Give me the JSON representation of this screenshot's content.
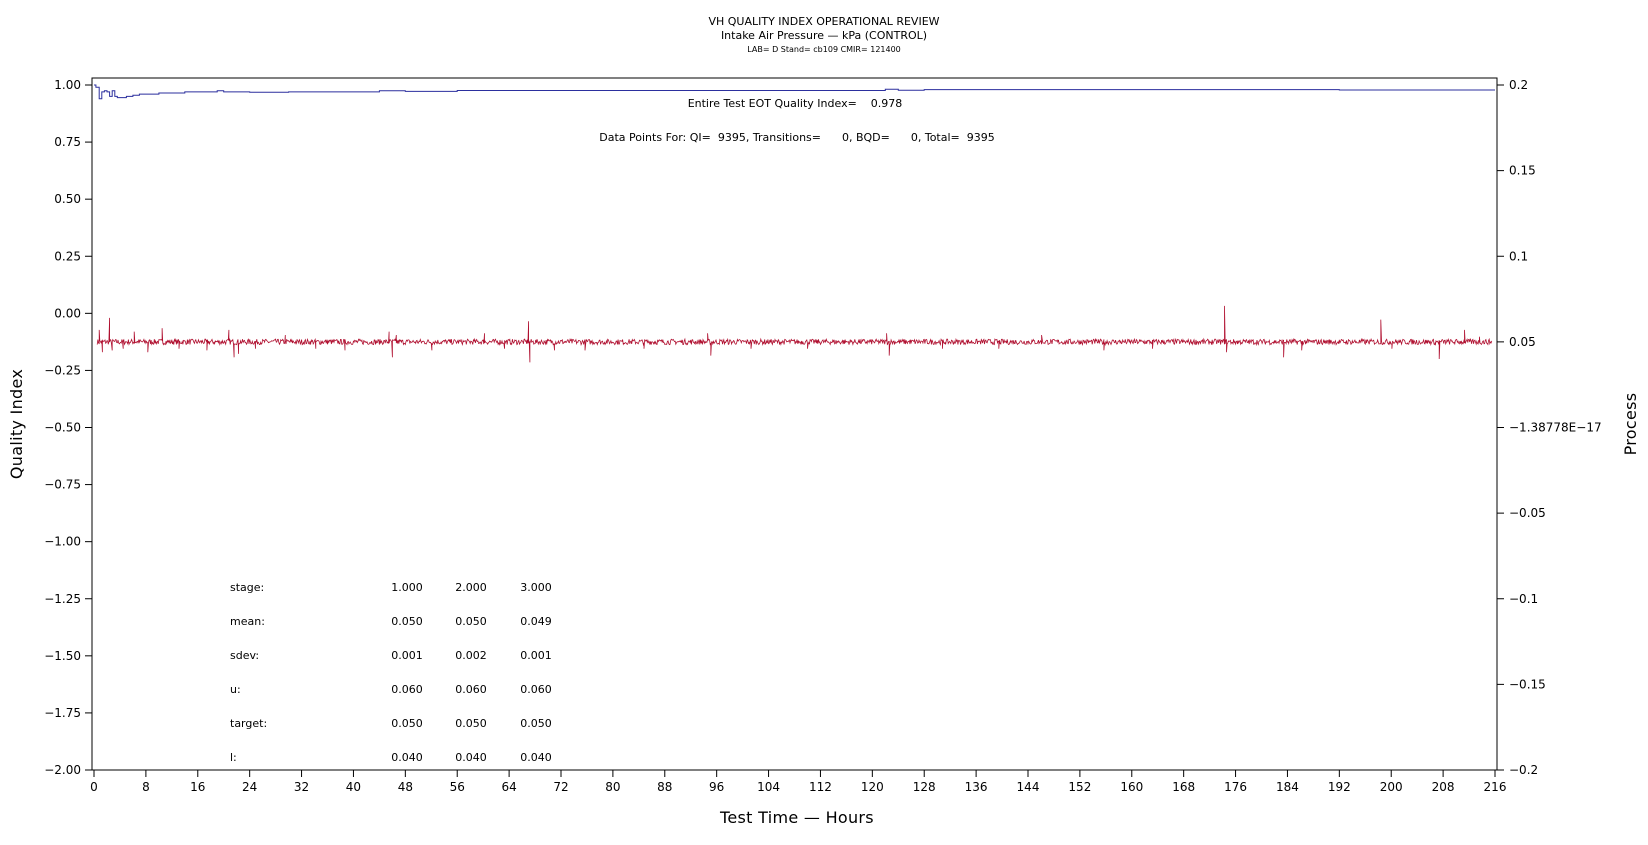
{
  "chart_data": {
    "type": "line",
    "title": "VH QUALITY INDEX OPERATIONAL REVIEW",
    "subtitle": "Intake Air Pressure — kPa (CONTROL)",
    "subtitle2": "LAB= D Stand= cb109 CMIR= 121400",
    "xlabel": "Test Time — Hours",
    "ylabel": "Quality Index",
    "y2label": "Process",
    "xlim": [
      0,
      216
    ],
    "ylim": [
      -2.0,
      1.0
    ],
    "y2lim": [
      -0.2,
      0.2
    ],
    "x_ticks": [
      0,
      8,
      16,
      24,
      32,
      40,
      48,
      56,
      64,
      72,
      80,
      88,
      96,
      104,
      112,
      120,
      128,
      136,
      144,
      152,
      160,
      168,
      176,
      184,
      192,
      200,
      208,
      216
    ],
    "y_ticks": [
      {
        "value": 1.0,
        "label": "1.00"
      },
      {
        "value": 0.75,
        "label": "0.75"
      },
      {
        "value": 0.5,
        "label": "0.50"
      },
      {
        "value": 0.25,
        "label": "0.25"
      },
      {
        "value": 0.0,
        "label": "0.00"
      },
      {
        "value": -0.25,
        "label": "−0.25"
      },
      {
        "value": -0.5,
        "label": "−0.50"
      },
      {
        "value": -0.75,
        "label": "−0.75"
      },
      {
        "value": -1.0,
        "label": "−1.00"
      },
      {
        "value": -1.25,
        "label": "−1.25"
      },
      {
        "value": -1.5,
        "label": "−1.50"
      },
      {
        "value": -1.75,
        "label": "−1.75"
      },
      {
        "value": -2.0,
        "label": "−2.00"
      }
    ],
    "y2_ticks": [
      {
        "value": 0.2,
        "label": "0.2"
      },
      {
        "value": 0.15,
        "label": "0.15"
      },
      {
        "value": 0.1,
        "label": "0.1"
      },
      {
        "value": 0.05,
        "label": "0.05"
      },
      {
        "value": 0.0,
        "label": "−1.38778E−17"
      },
      {
        "value": -0.05,
        "label": "−0.05"
      },
      {
        "value": -0.1,
        "label": "−0.1"
      },
      {
        "value": -0.15,
        "label": "−0.15"
      },
      {
        "value": -0.2,
        "label": "−0.2"
      }
    ],
    "annotations": [
      "Entire Test EOT Quality Index=    0.978",
      "Data Points For: QI=  9395, Transitions=      0, BQD=      0, Total=  9395"
    ],
    "series": [
      {
        "axis": "left",
        "color": "#2b2f9e",
        "x": [
          0,
          0.3,
          0.8,
          1.2,
          1.6,
          2.0,
          2.4,
          2.8,
          3.2,
          3.6,
          4,
          5,
          6,
          7,
          8,
          10,
          12,
          14,
          16,
          18,
          19,
          20,
          22,
          24,
          30,
          40,
          44,
          46,
          48,
          52,
          56,
          64,
          72,
          80,
          96,
          112,
          120,
          122,
          124,
          128,
          144,
          160,
          176,
          192,
          208,
          216
        ],
        "values": [
          1.0,
          0.99,
          0.94,
          0.97,
          0.975,
          0.97,
          0.95,
          0.975,
          0.95,
          0.945,
          0.945,
          0.95,
          0.955,
          0.96,
          0.96,
          0.965,
          0.965,
          0.97,
          0.97,
          0.97,
          0.975,
          0.97,
          0.97,
          0.968,
          0.97,
          0.97,
          0.975,
          0.975,
          0.972,
          0.972,
          0.976,
          0.976,
          0.976,
          0.976,
          0.976,
          0.976,
          0.976,
          0.981,
          0.977,
          0.98,
          0.98,
          0.98,
          0.98,
          0.978,
          0.978,
          0.978
        ]
      },
      {
        "axis": "right",
        "color": "#b01030",
        "baseline": 0.05,
        "noise": 0.0016,
        "x_range": [
          0.5,
          215.5
        ],
        "spikes": [
          [
            0.8,
            0.057
          ],
          [
            1.3,
            0.044
          ],
          [
            2.4,
            0.064
          ],
          [
            2.8,
            0.045
          ],
          [
            4.5,
            0.046
          ],
          [
            6.2,
            0.056
          ],
          [
            8.3,
            0.044
          ],
          [
            10.5,
            0.058
          ],
          [
            13.1,
            0.046
          ],
          [
            17.4,
            0.045
          ],
          [
            20.8,
            0.057
          ],
          [
            21.6,
            0.041
          ],
          [
            22.3,
            0.043
          ],
          [
            24.9,
            0.046
          ],
          [
            29.5,
            0.054
          ],
          [
            34.2,
            0.046
          ],
          [
            38.7,
            0.045
          ],
          [
            45.5,
            0.056
          ],
          [
            46.0,
            0.041
          ],
          [
            46.6,
            0.054
          ],
          [
            52.1,
            0.045
          ],
          [
            60.2,
            0.055
          ],
          [
            63.3,
            0.046
          ],
          [
            67.0,
            0.062
          ],
          [
            67.2,
            0.038
          ],
          [
            71.0,
            0.045
          ],
          [
            75.7,
            0.045
          ],
          [
            84.8,
            0.046
          ],
          [
            94.6,
            0.055
          ],
          [
            95.1,
            0.042
          ],
          [
            101.3,
            0.046
          ],
          [
            110.0,
            0.046
          ],
          [
            122.2,
            0.055
          ],
          [
            122.6,
            0.042
          ],
          [
            130.8,
            0.046
          ],
          [
            139.5,
            0.046
          ],
          [
            146.1,
            0.054
          ],
          [
            155.7,
            0.045
          ],
          [
            163.2,
            0.046
          ],
          [
            174.3,
            0.071
          ],
          [
            174.6,
            0.044
          ],
          [
            183.4,
            0.041
          ],
          [
            186.2,
            0.045
          ],
          [
            198.4,
            0.063
          ],
          [
            200.1,
            0.046
          ],
          [
            206.8,
            0.048
          ],
          [
            207.4,
            0.04
          ],
          [
            211.3,
            0.057
          ],
          [
            213.6,
            0.053
          ]
        ]
      }
    ],
    "stats_table": {
      "rows": [
        {
          "label": "stage:",
          "values": [
            "1.000",
            "2.000",
            "3.000"
          ]
        },
        {
          "label": "mean:",
          "values": [
            "0.050",
            "0.050",
            "0.049"
          ]
        },
        {
          "label": "sdev:",
          "values": [
            "0.001",
            "0.002",
            "0.001"
          ]
        },
        {
          "label": "u:",
          "values": [
            "0.060",
            "0.060",
            "0.060"
          ]
        },
        {
          "label": "target:",
          "values": [
            "0.050",
            "0.050",
            "0.050"
          ]
        },
        {
          "label": "l:",
          "values": [
            "0.040",
            "0.040",
            "0.040"
          ]
        }
      ]
    }
  }
}
